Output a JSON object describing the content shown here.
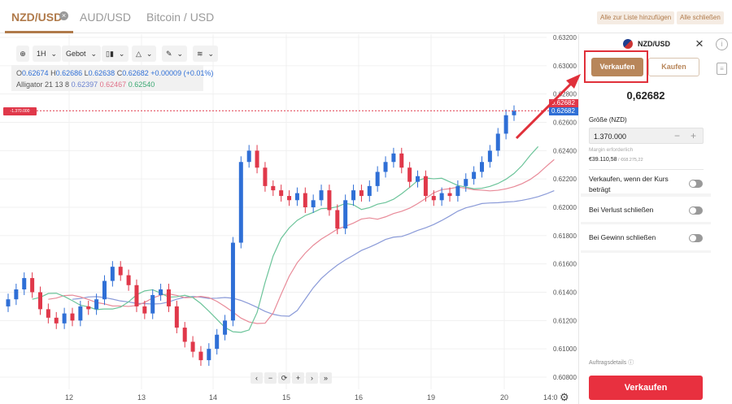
{
  "tabs": [
    {
      "label": "NZD/USD",
      "active": true
    },
    {
      "label": "AUD/USD"
    },
    {
      "label": "Bitcoin / USD"
    }
  ],
  "top_actions": {
    "add_all": "Alle zur Liste hinzufügen",
    "close_all": "Alle schließen"
  },
  "toolbar": {
    "interval": "1H",
    "price_type": "Gebot"
  },
  "ohlc": {
    "o_label": "O",
    "o": "0.62674",
    "h_label": "H",
    "h": "0.62686",
    "l_label": "L",
    "l": "0.62638",
    "c_label": "C",
    "c": "0.62682",
    "change": "+0.00009 (+0.01%)"
  },
  "alligator": {
    "label": "Alligator 21 13 8",
    "jaw": "0.62397",
    "teeth": "0.62467",
    "lips": "0.62540"
  },
  "position_line": {
    "label": "-1.370.000"
  },
  "price_tags": {
    "ask": "0.62682",
    "bid": "0.62682"
  },
  "colors": {
    "accent": "#b07a4a",
    "up": "#2f6fd6",
    "down": "#e0384a",
    "jaw": "#8a9ad8",
    "teeth": "#e88a98",
    "lips": "#6cc49a",
    "sell": "#e8303f"
  },
  "chart_data": {
    "type": "candlestick",
    "y_ticks": [
      "0.63200",
      "0.63000",
      "0.62800",
      "0.62600",
      "0.62400",
      "0.62200",
      "0.62000",
      "0.61800",
      "0.61600",
      "0.61400",
      "0.61200",
      "0.61000",
      "0.60800"
    ],
    "ylim": [
      0.608,
      0.632
    ],
    "x_ticks": [
      "12",
      "13",
      "14",
      "15",
      "16",
      "19",
      "20",
      "14:0"
    ],
    "close": [
      0.6135,
      0.6142,
      0.615,
      0.614,
      0.6128,
      0.6122,
      0.6118,
      0.6125,
      0.612,
      0.613,
      0.6128,
      0.6135,
      0.6148,
      0.6158,
      0.6152,
      0.6145,
      0.613,
      0.6125,
      0.6138,
      0.6142,
      0.613,
      0.6115,
      0.6105,
      0.6098,
      0.6092,
      0.61,
      0.611,
      0.612,
      0.6175,
      0.6232,
      0.624,
      0.6228,
      0.6215,
      0.6212,
      0.6208,
      0.6205,
      0.621,
      0.62,
      0.6205,
      0.6212,
      0.6198,
      0.6185,
      0.6205,
      0.6212,
      0.6208,
      0.6215,
      0.6225,
      0.6232,
      0.6238,
      0.6228,
      0.6218,
      0.6222,
      0.6208,
      0.6205,
      0.621,
      0.6208,
      0.6215,
      0.622,
      0.6225,
      0.6232,
      0.624,
      0.6252,
      0.6265,
      0.6268
    ]
  },
  "zoom_controls": [
    "‹",
    "−",
    "⟳",
    "+",
    "›",
    "»"
  ],
  "panel": {
    "symbol": "NZD/USD",
    "sell_tab": "Verkaufen",
    "buy_tab": "Kaufen",
    "price": "0,62682",
    "size_label": "Größe (NZD)",
    "size_value": "1.370.000",
    "margin_label": "Margin erforderlich",
    "margin_value": "€39.110,58",
    "margin_total": " / €68.275,22",
    "limit_label": "Verkaufen, wenn der Kurs beträgt",
    "stop_loss_label": "Bei Verlust schließen",
    "take_profit_label": "Bei Gewinn schließen",
    "order_details": "Auftragsdetails",
    "submit": "Verkaufen"
  }
}
